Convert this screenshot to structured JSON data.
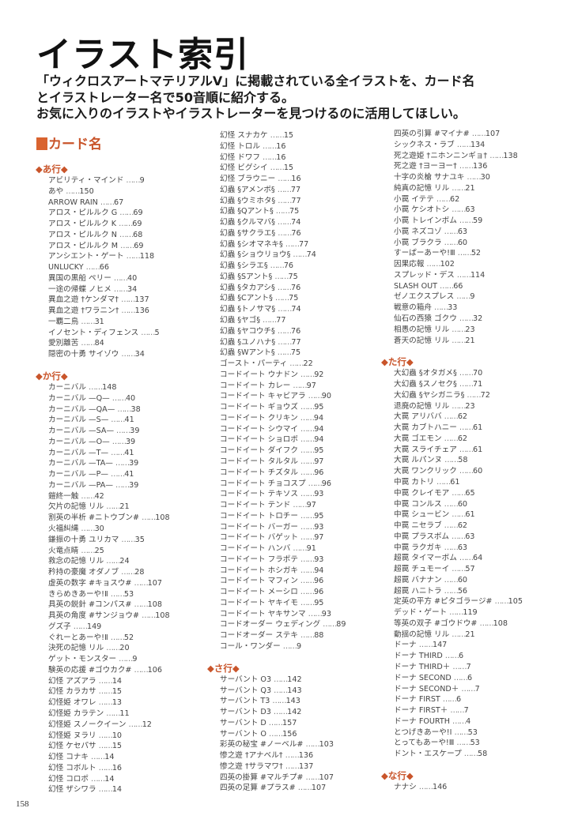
{
  "title": "イラスト索引",
  "intro": [
    "「ウィクロスアートマテリアルV」に掲載されている全イラストを、カード名",
    "とイラストレーター名で50音順に紹介する。",
    "お気に入りのイラストやイラストレーターを見つけるのに活用してほしい。"
  ],
  "section_heading": "カード名",
  "leader": "……",
  "page_number": "158",
  "colors": {
    "accent": "#c9552b",
    "text": "#444444"
  },
  "columns": [
    [
      {
        "header": "◆あ行◆",
        "items": [
          {
            "name": "アビリティ・マインド",
            "page": "9"
          },
          {
            "name": "あや",
            "page": "150"
          },
          {
            "name": "ARROW RAIN",
            "page": "67"
          },
          {
            "name": "アロス・ピルルク G",
            "page": "69"
          },
          {
            "name": "アロス・ピルルク K",
            "page": "69"
          },
          {
            "name": "アロス・ピルルク N",
            "page": "68"
          },
          {
            "name": "アロス・ピルルク M",
            "page": "69"
          },
          {
            "name": "アンシエント・ゲート",
            "page": "118"
          },
          {
            "name": "UNLUCKY",
            "page": "66"
          },
          {
            "name": "異国の黒船 ペリー",
            "page": "40"
          },
          {
            "name": "一途の帰蝶 ノヒメ",
            "page": "34"
          },
          {
            "name": "異血之遊 †ケンダマ†",
            "page": "137"
          },
          {
            "name": "異血之遊 †ワラニン†",
            "page": "136"
          },
          {
            "name": "一覇二鳥",
            "page": "31"
          },
          {
            "name": "イノセント・ディフェンス",
            "page": "5"
          },
          {
            "name": "愛別離苦",
            "page": "84"
          },
          {
            "name": "隠密の十勇 サイゾウ",
            "page": "34"
          }
        ]
      },
      {
        "header": "◆か行◆",
        "items": [
          {
            "name": "カーニバル",
            "page": "148"
          },
          {
            "name": "カーニバル —Q—",
            "page": "40"
          },
          {
            "name": "カーニバル —QA—",
            "page": "38"
          },
          {
            "name": "カーニバル —S—",
            "page": "41"
          },
          {
            "name": "カーニバル —SA—",
            "page": "39"
          },
          {
            "name": "カーニバル —O—",
            "page": "39"
          },
          {
            "name": "カーニバル —T—",
            "page": "41"
          },
          {
            "name": "カーニバル —TA—",
            "page": "39"
          },
          {
            "name": "カーニバル —P—",
            "page": "41"
          },
          {
            "name": "カーニバル —PA—",
            "page": "39"
          },
          {
            "name": "鎧終一触",
            "page": "42"
          },
          {
            "name": "欠片の記憶 リル",
            "page": "21"
          },
          {
            "name": "割英の半析 #ニトウブン#",
            "page": "108"
          },
          {
            "name": "火福糾縄",
            "page": "30"
          },
          {
            "name": "鎌振の十勇 ユリカマ",
            "page": "35"
          },
          {
            "name": "火竜点睛",
            "page": "25"
          },
          {
            "name": "救念の記憶 リル",
            "page": "24"
          },
          {
            "name": "矜持の豪魔 オダノブ",
            "page": "28"
          },
          {
            "name": "虚英の数字 #キョスウ#",
            "page": "107"
          },
          {
            "name": "きらめきあーや!Ⅱ",
            "page": "53"
          },
          {
            "name": "具英の鋭針 #コンパス#",
            "page": "108"
          },
          {
            "name": "具英の角度 #サンジョウ#",
            "page": "108"
          },
          {
            "name": "グズ子",
            "page": "149"
          },
          {
            "name": "ぐれーとあーや!Ⅱ",
            "page": "52"
          },
          {
            "name": "決死の記憶 リル",
            "page": "20"
          },
          {
            "name": "ゲット・モンスター",
            "page": "9"
          },
          {
            "name": "験英の応援 #ゴウカク#",
            "page": "106"
          },
          {
            "name": "幻怪 アズアラ",
            "page": "14"
          },
          {
            "name": "幻怪 カラカサ",
            "page": "15"
          },
          {
            "name": "幻怪姫 オワレ",
            "page": "13"
          },
          {
            "name": "幻怪姫 カラテン",
            "page": "11"
          },
          {
            "name": "幻怪姫 スノークイーン",
            "page": "12"
          },
          {
            "name": "幻怪姫 ヌラリ",
            "page": "10"
          },
          {
            "name": "幻怪 ケセパサ",
            "page": "15"
          },
          {
            "name": "幻怪 コナキ",
            "page": "14"
          },
          {
            "name": "幻怪 コボルト",
            "page": "16"
          },
          {
            "name": "幻怪 コロポ",
            "page": "14"
          },
          {
            "name": "幻怪 ザシワラ",
            "page": "14"
          }
        ]
      }
    ],
    [
      {
        "header": "",
        "items": [
          {
            "name": "幻怪 スナカケ",
            "page": "15"
          },
          {
            "name": "幻怪 トロル",
            "page": "16"
          },
          {
            "name": "幻怪 ドワフ",
            "page": "16"
          },
          {
            "name": "幻怪 ビグシイ",
            "page": "15"
          },
          {
            "name": "幻怪 ブラウニー",
            "page": "16"
          },
          {
            "name": "幻蟲 §アメンボ§",
            "page": "77"
          },
          {
            "name": "幻蟲 §ウミホタ§",
            "page": "77"
          },
          {
            "name": "幻蟲 §Qアント§",
            "page": "75"
          },
          {
            "name": "幻蟲 §クルマバ§",
            "page": "74"
          },
          {
            "name": "幻蟲 §サクラエ§",
            "page": "76"
          },
          {
            "name": "幻蟲 §シオマネキ§",
            "page": "77"
          },
          {
            "name": "幻蟲 §ショウリョウ§",
            "page": "74"
          },
          {
            "name": "幻蟲 §シラエ§",
            "page": "76"
          },
          {
            "name": "幻蟲 §Sアント§",
            "page": "75"
          },
          {
            "name": "幻蟲 §タカアシ§",
            "page": "76"
          },
          {
            "name": "幻蟲 §Cアント§",
            "page": "75"
          },
          {
            "name": "幻蟲 §トノサマ§",
            "page": "74"
          },
          {
            "name": "幻蟲 §ヤゴ§",
            "page": "77"
          },
          {
            "name": "幻蟲 §ヤコウチ§",
            "page": "76"
          },
          {
            "name": "幻蟲 §ユノハナ§",
            "page": "77"
          },
          {
            "name": "幻蟲 §Wアント§",
            "page": "75"
          },
          {
            "name": "ゴースト・パーティ",
            "page": "22"
          },
          {
            "name": "コードイート ウナドン",
            "page": "92"
          },
          {
            "name": "コードイート カレー",
            "page": "97"
          },
          {
            "name": "コードイート キャビアラ",
            "page": "90"
          },
          {
            "name": "コードイート ギョウズ",
            "page": "95"
          },
          {
            "name": "コードイート クリキン",
            "page": "94"
          },
          {
            "name": "コードイート シウマイ",
            "page": "94"
          },
          {
            "name": "コードイート ショロボ",
            "page": "94"
          },
          {
            "name": "コードイート ダイフク",
            "page": "95"
          },
          {
            "name": "コードイート タルタル",
            "page": "97"
          },
          {
            "name": "コードイート チズタル",
            "page": "96"
          },
          {
            "name": "コードイート チョコスプ",
            "page": "96"
          },
          {
            "name": "コードイート テキソス",
            "page": "93"
          },
          {
            "name": "コードイート テンド",
            "page": "97"
          },
          {
            "name": "コードイート トロチー",
            "page": "95"
          },
          {
            "name": "コードイート バーガー",
            "page": "93"
          },
          {
            "name": "コードイート バゲット",
            "page": "97"
          },
          {
            "name": "コードイート ハンバ",
            "page": "91"
          },
          {
            "name": "コードイート フラポテ",
            "page": "93"
          },
          {
            "name": "コードイート ホシガキ",
            "page": "94"
          },
          {
            "name": "コードイート マフィン",
            "page": "96"
          },
          {
            "name": "コードイート メーシロ",
            "page": "96"
          },
          {
            "name": "コードイート ヤキイモ",
            "page": "95"
          },
          {
            "name": "コードイート ヤキサンマ",
            "page": "93"
          },
          {
            "name": "コードオーダー ウェディング",
            "page": "89"
          },
          {
            "name": "コードオーダー ステキ",
            "page": "88"
          },
          {
            "name": "コール・ワンダー",
            "page": "9"
          }
        ]
      },
      {
        "header": "◆さ行◆",
        "items": [
          {
            "name": "サーバント O3",
            "page": "142"
          },
          {
            "name": "サーバント Q3",
            "page": "143"
          },
          {
            "name": "サーバント T3",
            "page": "143"
          },
          {
            "name": "サーバント D3",
            "page": "142"
          },
          {
            "name": "サーバント D",
            "page": "157"
          },
          {
            "name": "サーバント O",
            "page": "156"
          },
          {
            "name": "彩英の秘宝 #ノーベル#",
            "page": "103"
          },
          {
            "name": "惨之遊 †アナベル†",
            "page": "136"
          },
          {
            "name": "惨之遊 †サラマワ†",
            "page": "137"
          },
          {
            "name": "四英の掛算 #マルチプ#",
            "page": "107"
          },
          {
            "name": "四英の足算 #プラス#",
            "page": "107"
          }
        ]
      }
    ],
    [
      {
        "header": "",
        "items": [
          {
            "name": "四英の引算 #マイナ#",
            "page": "107"
          },
          {
            "name": "シックネス・ラブ",
            "page": "134"
          },
          {
            "name": "死之遊姫 †ニホンニンギョ†",
            "page": "138"
          },
          {
            "name": "死之遊 †ヨーヨー†",
            "page": "136"
          },
          {
            "name": "十字の炎槍 サナユキ",
            "page": "30"
          },
          {
            "name": "純真の記憶 リル",
            "page": "21"
          },
          {
            "name": "小罠 イテテ",
            "page": "62"
          },
          {
            "name": "小罠 ケシオトシ",
            "page": "63"
          },
          {
            "name": "小罠 トレインボム",
            "page": "59"
          },
          {
            "name": "小罠 ネズコゾ",
            "page": "63"
          },
          {
            "name": "小罠 ブラクラ",
            "page": "60"
          },
          {
            "name": "すーぱーあーや!Ⅲ",
            "page": "52"
          },
          {
            "name": "因果応報",
            "page": "102"
          },
          {
            "name": "スプレッド・デス",
            "page": "114"
          },
          {
            "name": "SLASH OUT",
            "page": "66"
          },
          {
            "name": "ゼノエクスプレス",
            "page": "9"
          },
          {
            "name": "戦意の箱舟",
            "page": "33"
          },
          {
            "name": "仙石の西猿 ゴクウ",
            "page": "32"
          },
          {
            "name": "相愚の記憶 リル",
            "page": "23"
          },
          {
            "name": "蒼天の記憶 リル",
            "page": "21"
          }
        ]
      },
      {
        "header": "◆た行◆",
        "items": [
          {
            "name": "大幻蟲 §オタガメ§",
            "page": "70"
          },
          {
            "name": "大幻蟲 §スノセク§",
            "page": "71"
          },
          {
            "name": "大幻蟲 §ヤシガニラ§",
            "page": "72"
          },
          {
            "name": "退廃の記憶 リル",
            "page": "23"
          },
          {
            "name": "大罠 アリババ",
            "page": "62"
          },
          {
            "name": "大罠 カブトハニー",
            "page": "61"
          },
          {
            "name": "大罠 ゴエモン",
            "page": "62"
          },
          {
            "name": "大罠 スライチェア",
            "page": "61"
          },
          {
            "name": "大罠 ルパンヌ",
            "page": "58"
          },
          {
            "name": "大罠 ワンクリック",
            "page": "60"
          },
          {
            "name": "中罠 カトリ",
            "page": "61"
          },
          {
            "name": "中罠 クレイモア",
            "page": "65"
          },
          {
            "name": "中罠 コンルス",
            "page": "60"
          },
          {
            "name": "中罠 シュービン",
            "page": "61"
          },
          {
            "name": "中罠 ニセラブ",
            "page": "62"
          },
          {
            "name": "中罠 プラスボム",
            "page": "63"
          },
          {
            "name": "中罠 ラクガキ",
            "page": "63"
          },
          {
            "name": "超罠 タイマーボム",
            "page": "64"
          },
          {
            "name": "超罠 チュモーイ",
            "page": "57"
          },
          {
            "name": "超罠 バナナン",
            "page": "60"
          },
          {
            "name": "超罠 ハニトラ",
            "page": "56"
          },
          {
            "name": "定英の平方 #ピタゴラージ#",
            "page": "105"
          },
          {
            "name": "デッド・ゲート",
            "page": "119"
          },
          {
            "name": "等英の双子 #ゴウドウ#",
            "page": "108"
          },
          {
            "name": "動揺の記憶 リル",
            "page": "21"
          },
          {
            "name": "ドーナ",
            "page": "147"
          },
          {
            "name": "ドーナ THIRD",
            "page": "6"
          },
          {
            "name": "ドーナ THIRD＋",
            "page": "7"
          },
          {
            "name": "ドーナ SECOND",
            "page": "6"
          },
          {
            "name": "ドーナ SECOND＋",
            "page": "7"
          },
          {
            "name": "ドーナ FIRST",
            "page": "6"
          },
          {
            "name": "ドーナ FIRST＋",
            "page": "7"
          },
          {
            "name": "ドーナ FOURTH",
            "page": "4"
          },
          {
            "name": "とつげきあーや!Ⅰ",
            "page": "53"
          },
          {
            "name": "とってもあーや!Ⅲ",
            "page": "53"
          },
          {
            "name": "ドント・エスケープ",
            "page": "58"
          }
        ]
      },
      {
        "header": "◆な行◆",
        "items": [
          {
            "name": "ナナシ",
            "page": "146"
          }
        ]
      }
    ]
  ]
}
